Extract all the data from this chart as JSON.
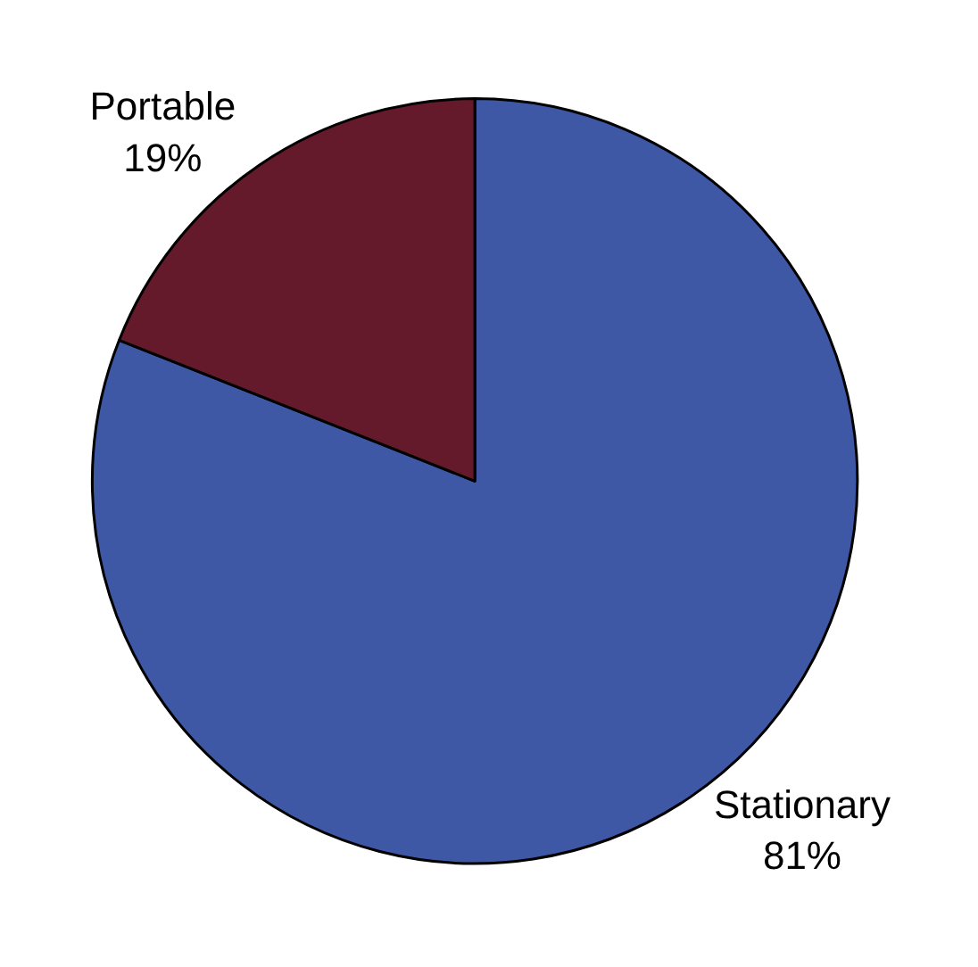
{
  "chart_data": {
    "type": "pie",
    "categories": [
      "Stationary",
      "Portable"
    ],
    "values": [
      81,
      19
    ],
    "colors": [
      "#3f58a6",
      "#651a2b"
    ],
    "value_labels": [
      "81%",
      "19%"
    ],
    "legend": false
  }
}
